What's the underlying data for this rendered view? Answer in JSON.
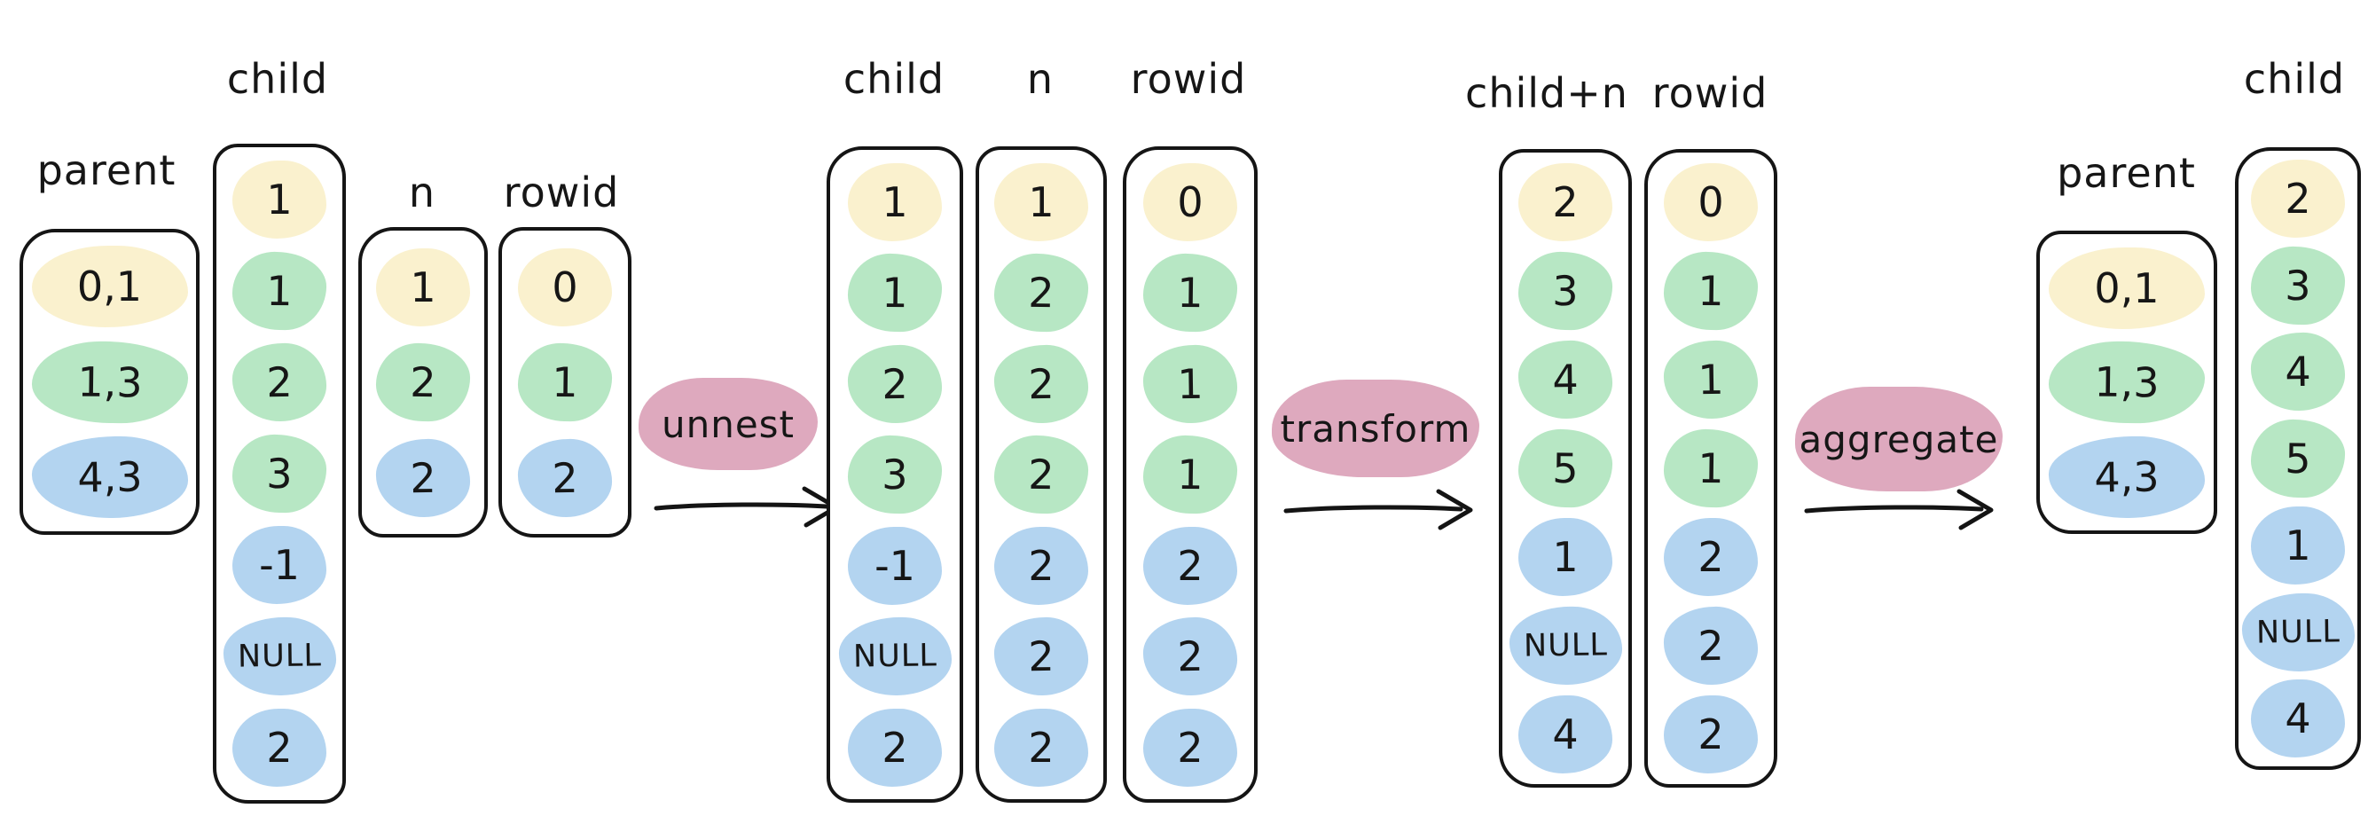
{
  "colors": {
    "yellow": "#FAF1CE",
    "green": "#B7E7C4",
    "blue": "#B3D4F0",
    "pink": "#DEA9BE",
    "ink": "#161616"
  },
  "operations": [
    {
      "label": "unnest"
    },
    {
      "label": "transform"
    },
    {
      "label": "aggregate"
    }
  ],
  "stages": [
    {
      "tables": [
        {
          "header": "parent",
          "rows": [
            {
              "text": "0,1",
              "color": "yellow"
            },
            {
              "text": "1,3",
              "color": "green"
            },
            {
              "text": "4,3",
              "color": "blue"
            }
          ]
        },
        {
          "header": "child",
          "rows": [
            {
              "text": "1",
              "color": "yellow"
            },
            {
              "text": "1",
              "color": "green"
            },
            {
              "text": "2",
              "color": "green"
            },
            {
              "text": "3",
              "color": "green"
            },
            {
              "text": "-1",
              "color": "blue"
            },
            {
              "text": "NULL",
              "color": "blue"
            },
            {
              "text": "2",
              "color": "blue"
            }
          ]
        },
        {
          "header": "n",
          "rows": [
            {
              "text": "1",
              "color": "yellow"
            },
            {
              "text": "2",
              "color": "green"
            },
            {
              "text": "2",
              "color": "blue"
            }
          ]
        },
        {
          "header": "rowid",
          "rows": [
            {
              "text": "0",
              "color": "yellow"
            },
            {
              "text": "1",
              "color": "green"
            },
            {
              "text": "2",
              "color": "blue"
            }
          ]
        }
      ]
    },
    {
      "tables": [
        {
          "header": "child",
          "rows": [
            {
              "text": "1",
              "color": "yellow"
            },
            {
              "text": "1",
              "color": "green"
            },
            {
              "text": "2",
              "color": "green"
            },
            {
              "text": "3",
              "color": "green"
            },
            {
              "text": "-1",
              "color": "blue"
            },
            {
              "text": "NULL",
              "color": "blue"
            },
            {
              "text": "2",
              "color": "blue"
            }
          ]
        },
        {
          "header": "n",
          "rows": [
            {
              "text": "1",
              "color": "yellow"
            },
            {
              "text": "2",
              "color": "green"
            },
            {
              "text": "2",
              "color": "green"
            },
            {
              "text": "2",
              "color": "green"
            },
            {
              "text": "2",
              "color": "blue"
            },
            {
              "text": "2",
              "color": "blue"
            },
            {
              "text": "2",
              "color": "blue"
            }
          ]
        },
        {
          "header": "rowid",
          "rows": [
            {
              "text": "0",
              "color": "yellow"
            },
            {
              "text": "1",
              "color": "green"
            },
            {
              "text": "1",
              "color": "green"
            },
            {
              "text": "1",
              "color": "green"
            },
            {
              "text": "2",
              "color": "blue"
            },
            {
              "text": "2",
              "color": "blue"
            },
            {
              "text": "2",
              "color": "blue"
            }
          ]
        }
      ]
    },
    {
      "tables": [
        {
          "header": "child+n",
          "rows": [
            {
              "text": "2",
              "color": "yellow"
            },
            {
              "text": "3",
              "color": "green"
            },
            {
              "text": "4",
              "color": "green"
            },
            {
              "text": "5",
              "color": "green"
            },
            {
              "text": "1",
              "color": "blue"
            },
            {
              "text": "NULL",
              "color": "blue"
            },
            {
              "text": "4",
              "color": "blue"
            }
          ]
        },
        {
          "header": "rowid",
          "rows": [
            {
              "text": "0",
              "color": "yellow"
            },
            {
              "text": "1",
              "color": "green"
            },
            {
              "text": "1",
              "color": "green"
            },
            {
              "text": "1",
              "color": "green"
            },
            {
              "text": "2",
              "color": "blue"
            },
            {
              "text": "2",
              "color": "blue"
            },
            {
              "text": "2",
              "color": "blue"
            }
          ]
        }
      ]
    },
    {
      "tables": [
        {
          "header": "parent",
          "rows": [
            {
              "text": "0,1",
              "color": "yellow"
            },
            {
              "text": "1,3",
              "color": "green"
            },
            {
              "text": "4,3",
              "color": "blue"
            }
          ]
        },
        {
          "header": "child",
          "rows": [
            {
              "text": "2",
              "color": "yellow"
            },
            {
              "text": "3",
              "color": "green"
            },
            {
              "text": "4",
              "color": "green"
            },
            {
              "text": "5",
              "color": "green"
            },
            {
              "text": "1",
              "color": "blue"
            },
            {
              "text": "NULL",
              "color": "blue"
            },
            {
              "text": "4",
              "color": "blue"
            }
          ]
        }
      ]
    }
  ]
}
